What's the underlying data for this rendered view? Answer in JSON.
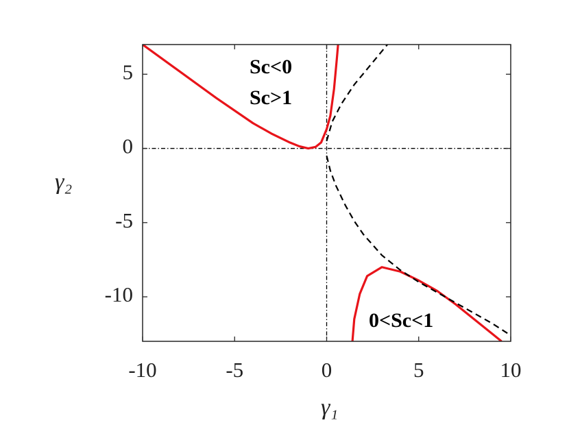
{
  "chart_data": {
    "type": "line",
    "xlabel": "γ₁",
    "ylabel": "γ₂",
    "xlim": [
      -10,
      10
    ],
    "ylim": [
      -13,
      7
    ],
    "xticks": [
      -10,
      -5,
      0,
      5,
      10
    ],
    "yticks": [
      -10,
      -5,
      0,
      5
    ],
    "hlines": [
      0
    ],
    "vlines": [
      0
    ],
    "annotations": [
      "Sc<0",
      "Sc>1",
      "0<Sc<1"
    ],
    "series": [
      {
        "color": "#e8141a",
        "style": "solid",
        "x": [
          -10,
          -8,
          -6,
          -4,
          -3,
          -2,
          -1.5,
          -1,
          -0.6,
          -0.3,
          0,
          0.2,
          0.4,
          0.55,
          0.62
        ],
        "values": [
          7,
          5.2,
          3.4,
          1.7,
          1.0,
          0.4,
          0.15,
          0,
          0.1,
          0.4,
          1.3,
          2.2,
          4,
          6,
          7
        ]
      },
      {
        "color": "#e8141a",
        "style": "solid",
        "x": [
          1.4,
          1.5,
          1.8,
          2.2,
          3,
          4,
          5,
          6,
          7,
          8,
          9,
          9.5
        ],
        "values": [
          -13,
          -11.5,
          -9.8,
          -8.6,
          -8,
          -8.3,
          -8.9,
          -9.6,
          -10.5,
          -11.5,
          -12.5,
          -13
        ]
      },
      {
        "color": "#000000",
        "style": "dashed",
        "x": [
          0,
          0.3,
          0.8,
          1.5,
          2.5,
          3.3
        ],
        "values": [
          0.5,
          1.8,
          3,
          4.3,
          5.8,
          7
        ]
      },
      {
        "color": "#000000",
        "style": "dashed",
        "x": [
          0,
          0.2,
          0.5,
          1,
          1.5,
          2,
          3,
          4,
          5,
          6,
          7,
          8,
          9,
          10
        ],
        "values": [
          -0.5,
          -1.5,
          -2.5,
          -3.8,
          -4.9,
          -5.8,
          -7.2,
          -8.2,
          -9,
          -9.7,
          -10.4,
          -11.1,
          -11.8,
          -12.6
        ]
      }
    ]
  }
}
